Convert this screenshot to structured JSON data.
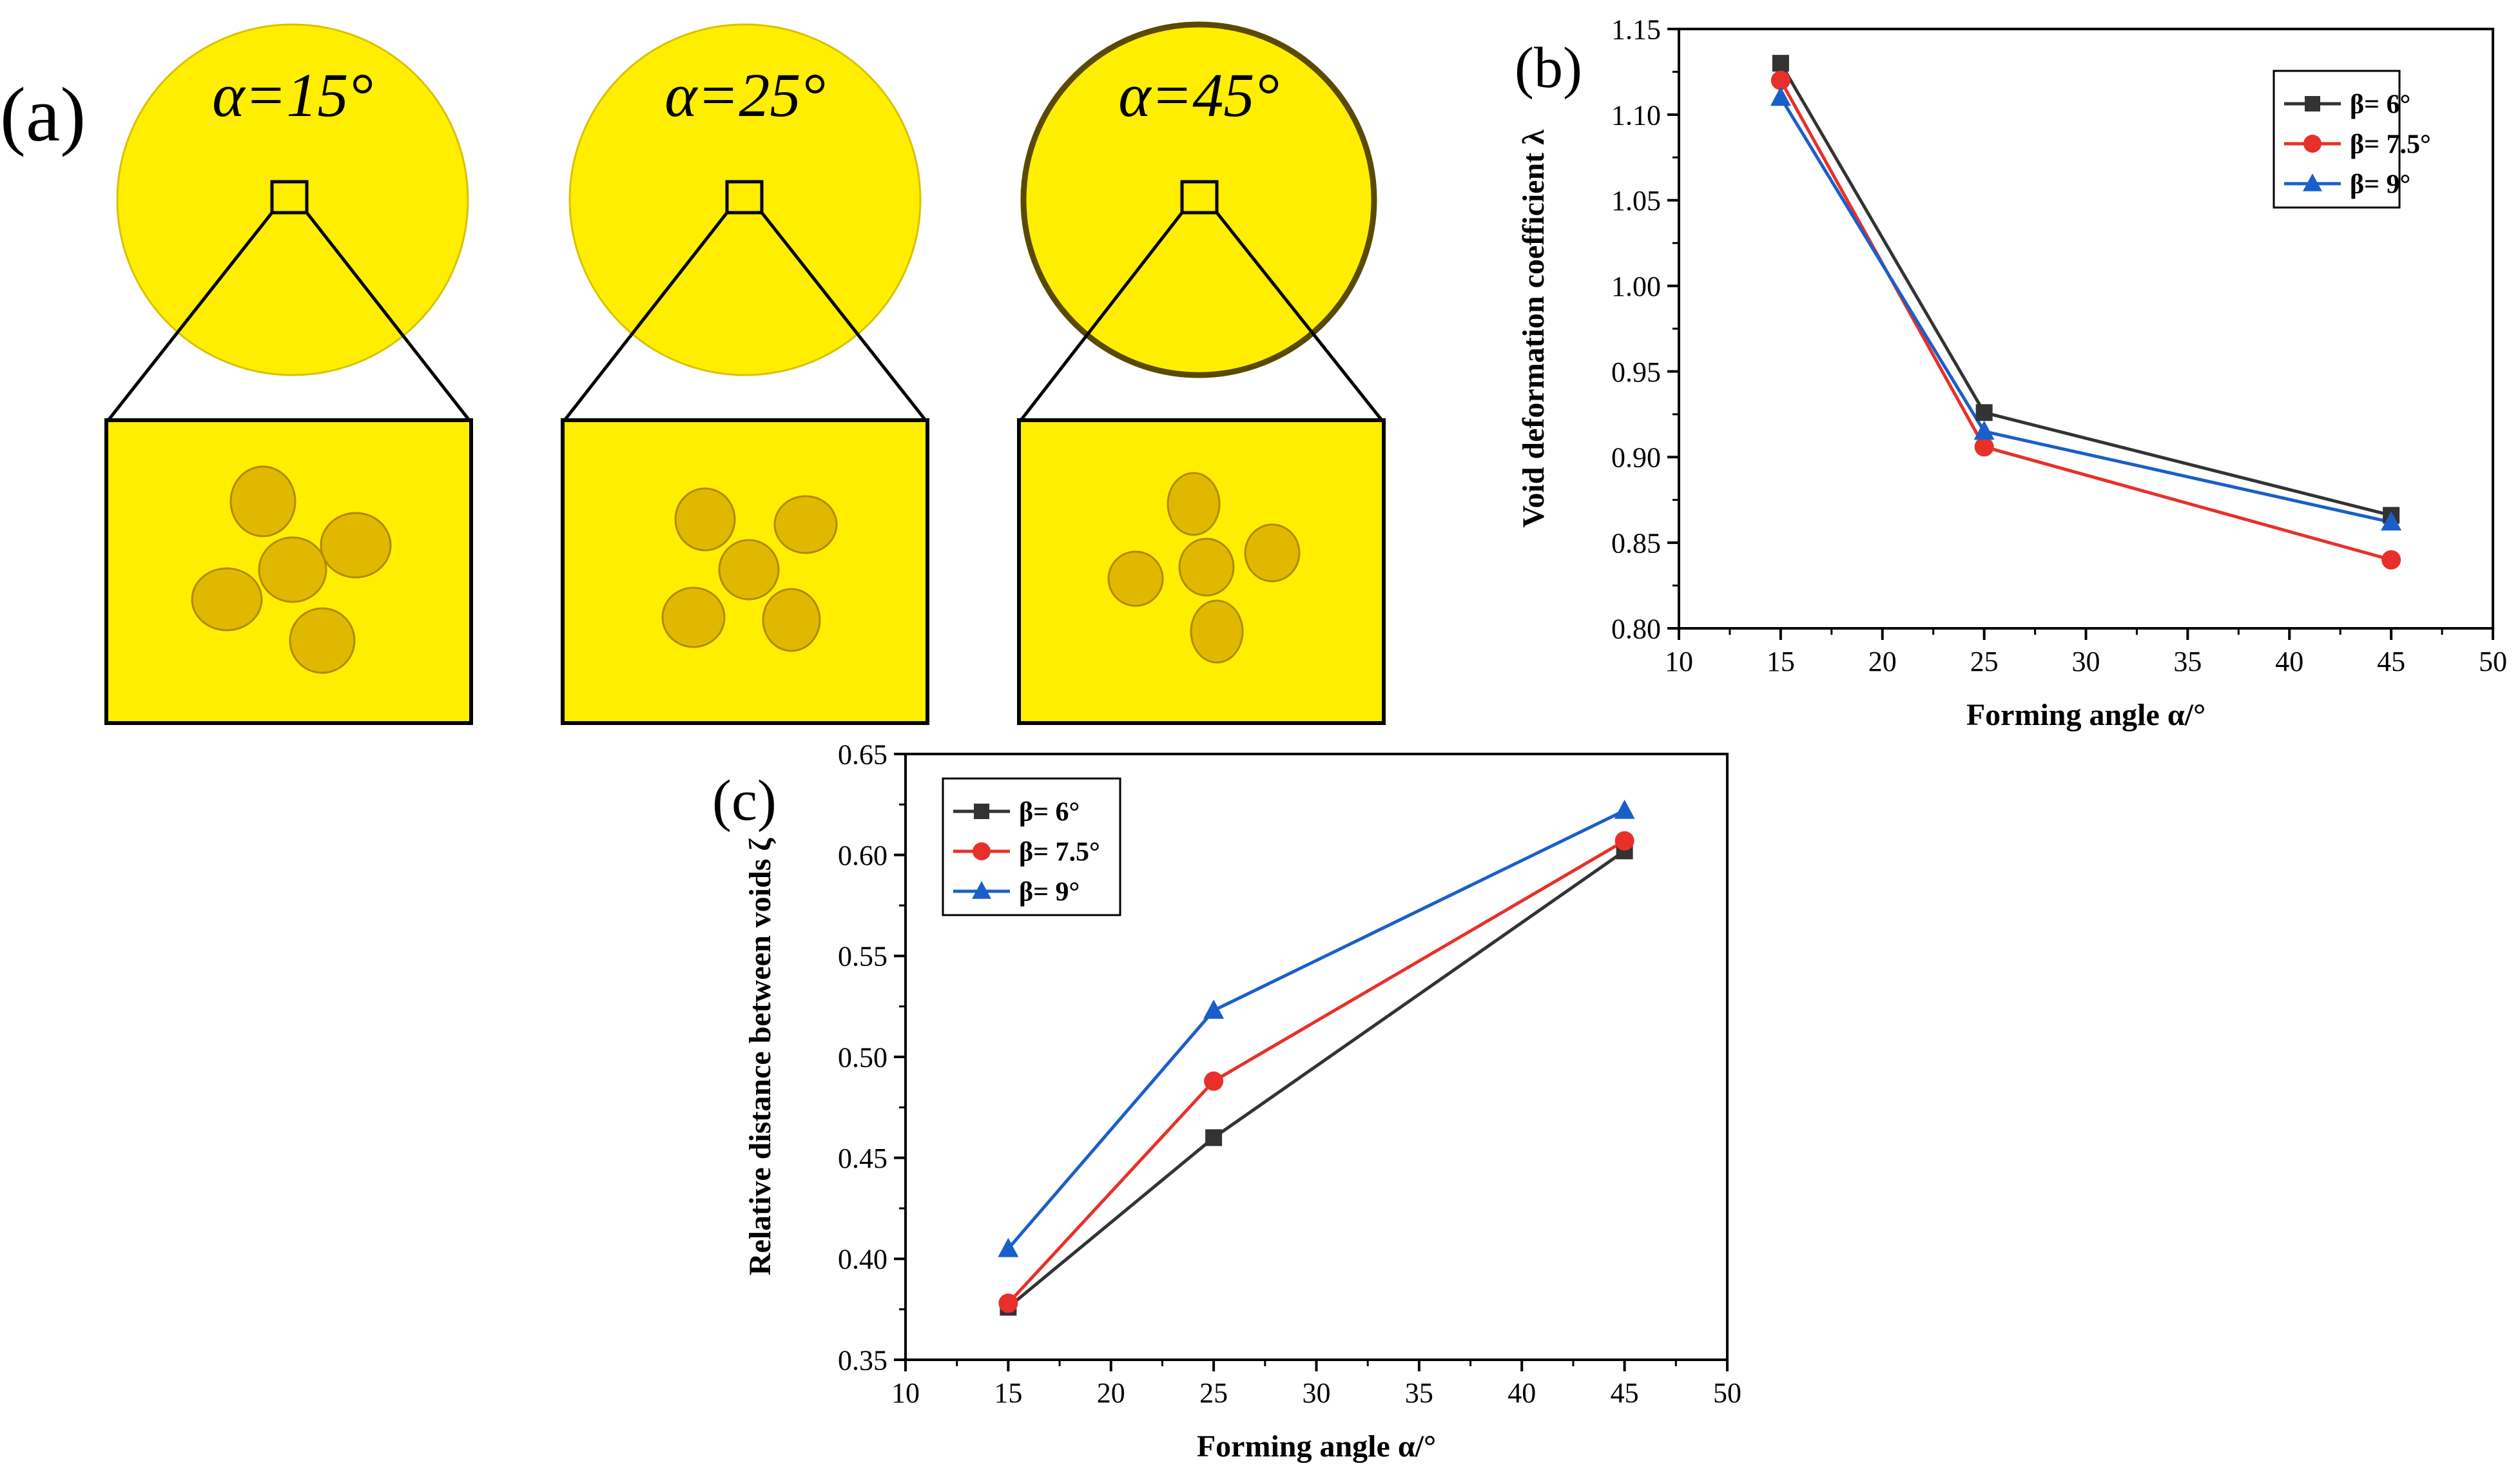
{
  "panel_a": {
    "label": "(a)",
    "cases": [
      {
        "label": "α=15°",
        "alpha_deg": 15
      },
      {
        "label": "α=25°",
        "alpha_deg": 25
      },
      {
        "label": "α=45°",
        "alpha_deg": 45
      }
    ],
    "colors": {
      "fill": "#ffee00",
      "stroke": "#000000",
      "void": "#e0b800"
    }
  },
  "chart_data": [
    {
      "panel": "(b)",
      "type": "line",
      "xlabel": "Forming angle α/°",
      "ylabel": "Void deformation coefficient λ",
      "x": [
        15,
        25,
        45
      ],
      "xlim": [
        10,
        50
      ],
      "xticks": [
        10,
        15,
        20,
        25,
        30,
        35,
        40,
        45,
        50
      ],
      "ylim": [
        0.8,
        1.15
      ],
      "yticks": [
        "0.80",
        "0.85",
        "0.90",
        "0.95",
        "1.00",
        "1.05",
        "1.10",
        "1.15"
      ],
      "legend_position": "top-right",
      "series": [
        {
          "name": "β= 6°",
          "marker": "square",
          "color": "#333333",
          "values": [
            1.13,
            0.926,
            0.866
          ]
        },
        {
          "name": "β= 7.5°",
          "marker": "circle",
          "color": "#e8302a",
          "values": [
            1.12,
            0.906,
            0.84
          ]
        },
        {
          "name": "β= 9°",
          "marker": "triangle",
          "color": "#1a5fc8",
          "values": [
            1.11,
            0.915,
            0.862
          ]
        }
      ]
    },
    {
      "panel": "(c)",
      "type": "line",
      "xlabel": "Forming angle α/°",
      "ylabel": "Relative distance between voids ζ",
      "x": [
        15,
        25,
        45
      ],
      "xlim": [
        10,
        50
      ],
      "xticks": [
        10,
        15,
        20,
        25,
        30,
        35,
        40,
        45,
        50
      ],
      "ylim": [
        0.35,
        0.65
      ],
      "yticks": [
        "0.35",
        "0.40",
        "0.45",
        "0.50",
        "0.55",
        "0.60",
        "0.65"
      ],
      "legend_position": "top-left",
      "series": [
        {
          "name": "β= 6°",
          "marker": "square",
          "color": "#333333",
          "values": [
            0.376,
            0.46,
            0.602
          ]
        },
        {
          "name": "β= 7.5°",
          "marker": "circle",
          "color": "#e8302a",
          "values": [
            0.378,
            0.488,
            0.607
          ]
        },
        {
          "name": "β= 9°",
          "marker": "triangle",
          "color": "#1a5fc8",
          "values": [
            0.405,
            0.523,
            0.622
          ]
        }
      ]
    }
  ]
}
